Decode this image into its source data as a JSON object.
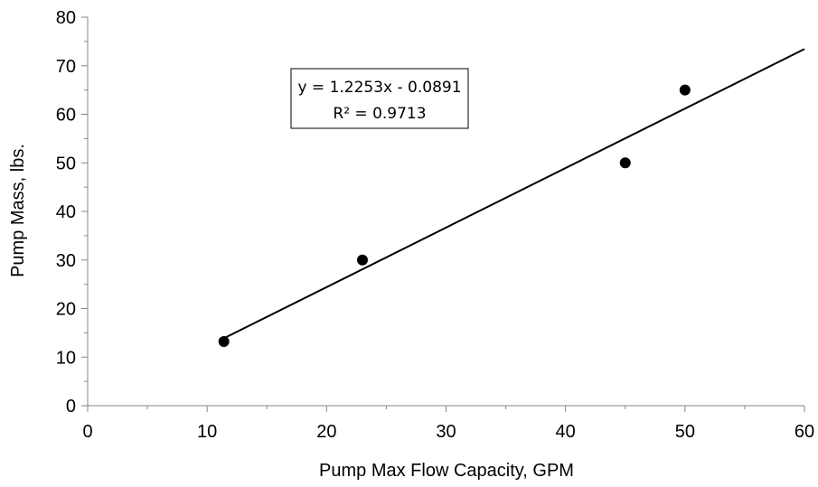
{
  "chart_data": {
    "type": "scatter",
    "title": "",
    "xlabel": "Pump Max Flow Capacity, GPM",
    "ylabel": "Pump Mass, lbs.",
    "xlim": [
      0,
      60
    ],
    "ylim": [
      0,
      80
    ],
    "x_ticks": [
      0,
      10,
      20,
      30,
      40,
      50,
      60
    ],
    "y_ticks": [
      0,
      10,
      20,
      30,
      40,
      50,
      60,
      70,
      80
    ],
    "grid": false,
    "legend": "none",
    "marker_color": "#000000",
    "series": [
      {
        "x": [
          11.4,
          23,
          45,
          50
        ],
        "y": [
          13.2,
          30,
          50,
          65
        ]
      }
    ],
    "trendline": {
      "type": "linear",
      "slope": 1.2253,
      "intercept": -0.0891,
      "x_range": [
        11.4,
        60
      ],
      "equation_label": "y = 1.2253x - 0.0891",
      "r2_label": "R² = 0.9713"
    }
  }
}
